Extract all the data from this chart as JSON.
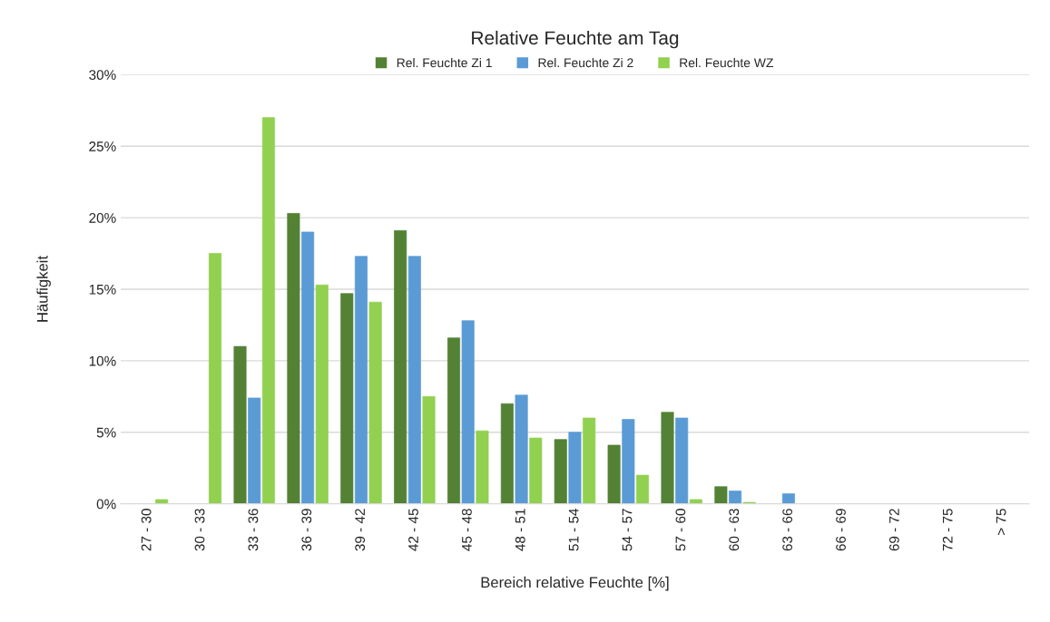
{
  "chart_data": {
    "type": "bar",
    "title": "Relative Feuchte am Tag",
    "xlabel": "Bereich relative Feuchte [%]",
    "ylabel": "Häufigkeit",
    "categories": [
      "27 - 30",
      "30 - 33",
      "33 - 36",
      "36 - 39",
      "39 - 42",
      "42 - 45",
      "45 - 48",
      "48 - 51",
      "51 - 54",
      "54 - 57",
      "57 - 60",
      "60 - 63",
      "63 - 66",
      "66 - 69",
      "69 - 72",
      "72 - 75",
      "> 75"
    ],
    "series": [
      {
        "name": "Rel. Feuchte Zi 1",
        "color": "#548235",
        "values": [
          0,
          0,
          11.0,
          20.3,
          14.7,
          19.1,
          11.6,
          7.0,
          4.5,
          4.1,
          6.4,
          1.2,
          0,
          0,
          0,
          0,
          0
        ]
      },
      {
        "name": "Rel. Feuchte Zi 2",
        "color": "#5b9bd5",
        "values": [
          0,
          0,
          7.4,
          19.0,
          17.3,
          17.3,
          12.8,
          7.6,
          5.0,
          5.9,
          6.0,
          0.9,
          0.7,
          0,
          0,
          0,
          0
        ]
      },
      {
        "name": "Rel. Feuchte WZ",
        "color": "#92d050",
        "values": [
          0.3,
          17.5,
          27.0,
          15.3,
          14.1,
          7.5,
          5.1,
          4.6,
          6.0,
          2.0,
          0.3,
          0.1,
          0,
          0,
          0,
          0,
          0
        ]
      }
    ],
    "ylim": [
      0,
      30
    ],
    "yticks": [
      {
        "value": 0,
        "label": "0%"
      },
      {
        "value": 5,
        "label": "5%"
      },
      {
        "value": 10,
        "label": "10%"
      },
      {
        "value": 15,
        "label": "15%"
      },
      {
        "value": 20,
        "label": "20%"
      },
      {
        "value": 25,
        "label": "25%"
      },
      {
        "value": 30,
        "label": "30%"
      }
    ],
    "grid": "y",
    "legend": "top"
  }
}
